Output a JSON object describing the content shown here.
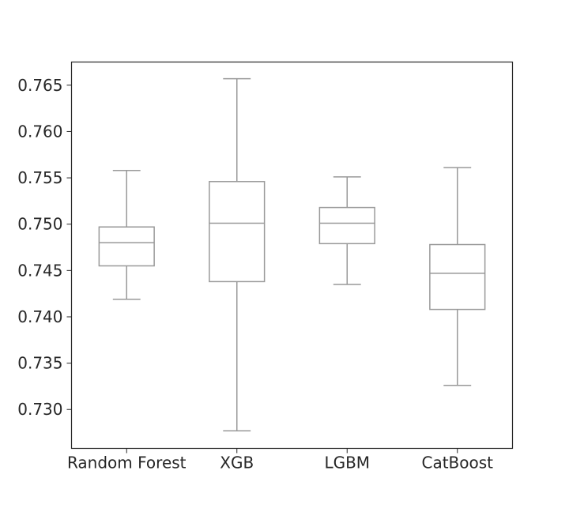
{
  "chart_data": {
    "type": "box",
    "title": "",
    "xlabel": "",
    "ylabel": "",
    "ylim": [
      0.7258,
      0.7675
    ],
    "yticks": [
      0.73,
      0.735,
      0.74,
      0.745,
      0.75,
      0.755,
      0.76,
      0.765
    ],
    "ytick_labels": [
      "0.730",
      "0.735",
      "0.740",
      "0.745",
      "0.750",
      "0.755",
      "0.760",
      "0.765"
    ],
    "grid": false,
    "box_color": "#999999",
    "categories": [
      "Random Forest",
      "XGB",
      "LGBM",
      "CatBoost"
    ],
    "boxes": [
      {
        "whisker_low": 0.7419,
        "q1": 0.7455,
        "median": 0.748,
        "q3": 0.7497,
        "whisker_high": 0.7558
      },
      {
        "whisker_low": 0.7277,
        "q1": 0.7438,
        "median": 0.7501,
        "q3": 0.7546,
        "whisker_high": 0.7657
      },
      {
        "whisker_low": 0.7435,
        "q1": 0.7479,
        "median": 0.7501,
        "q3": 0.7518,
        "whisker_high": 0.7551
      },
      {
        "whisker_low": 0.7326,
        "q1": 0.7408,
        "median": 0.7447,
        "q3": 0.7478,
        "whisker_high": 0.7561
      }
    ]
  }
}
